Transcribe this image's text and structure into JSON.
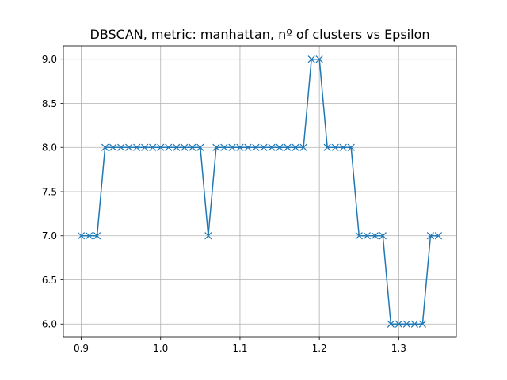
{
  "chart_data": {
    "type": "line",
    "title": "DBSCAN, metric: manhattan, nº of clusters vs Epsilon",
    "xlabel": "",
    "ylabel": "",
    "xlim": [
      0.8775,
      1.3725
    ],
    "ylim": [
      5.85,
      9.15
    ],
    "xticks": [
      0.9,
      1.0,
      1.1,
      1.2,
      1.3
    ],
    "xtick_labels": [
      "0.9",
      "1.0",
      "1.1",
      "1.2",
      "1.3"
    ],
    "yticks": [
      6.0,
      6.5,
      7.0,
      7.5,
      8.0,
      8.5,
      9.0
    ],
    "ytick_labels": [
      "6.0",
      "6.5",
      "7.0",
      "7.5",
      "8.0",
      "8.5",
      "9.0"
    ],
    "grid": true,
    "marker": "x",
    "color": "#1f77b4",
    "x": [
      0.9,
      0.91,
      0.92,
      0.93,
      0.94,
      0.95,
      0.96,
      0.97,
      0.98,
      0.99,
      1.0,
      1.01,
      1.02,
      1.03,
      1.04,
      1.05,
      1.06,
      1.07,
      1.08,
      1.09,
      1.1,
      1.11,
      1.12,
      1.13,
      1.14,
      1.15,
      1.16,
      1.17,
      1.18,
      1.19,
      1.2,
      1.21,
      1.22,
      1.23,
      1.24,
      1.25,
      1.26,
      1.27,
      1.28,
      1.29,
      1.3,
      1.31,
      1.32,
      1.33,
      1.34,
      1.35
    ],
    "y": [
      7,
      7,
      7,
      8,
      8,
      8,
      8,
      8,
      8,
      8,
      8,
      8,
      8,
      8,
      8,
      8,
      7,
      8,
      8,
      8,
      8,
      8,
      8,
      8,
      8,
      8,
      8,
      8,
      8,
      9,
      9,
      8,
      8,
      8,
      8,
      7,
      7,
      7,
      7,
      6,
      6,
      6,
      6,
      6,
      7,
      7
    ]
  }
}
